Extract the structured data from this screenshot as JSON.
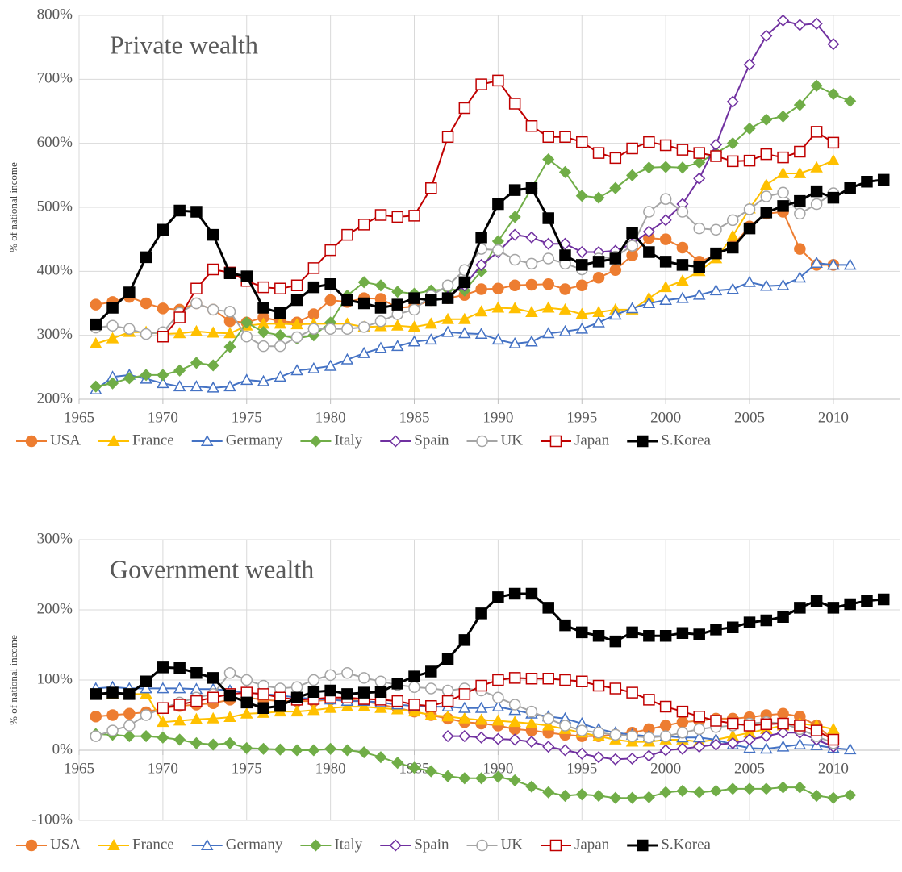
{
  "chart_data": [
    {
      "type": "line",
      "title": "Private wealth",
      "y_label": "% of national income",
      "x": [
        1966,
        1967,
        1968,
        1969,
        1970,
        1971,
        1972,
        1973,
        1974,
        1975,
        1976,
        1977,
        1978,
        1979,
        1980,
        1981,
        1982,
        1983,
        1984,
        1985,
        1986,
        1987,
        1988,
        1989,
        1990,
        1991,
        1992,
        1993,
        1994,
        1995,
        1996,
        1997,
        1998,
        1999,
        2000,
        2001,
        2002,
        2003,
        2004,
        2005,
        2006,
        2007,
        2008,
        2009,
        2010,
        2011,
        2012,
        2013
      ],
      "series": [
        {
          "name": "USA",
          "color": "#ED7D31",
          "marker": "circle",
          "filled": true,
          "values": [
            348,
            352,
            360,
            350,
            342,
            340,
            350,
            340,
            322,
            320,
            328,
            322,
            320,
            333,
            355,
            352,
            358,
            357,
            343,
            345,
            355,
            358,
            363,
            372,
            373,
            378,
            379,
            380,
            372,
            378,
            390,
            402,
            425,
            452,
            450,
            437,
            415,
            425,
            440,
            470,
            490,
            493,
            435,
            410,
            410,
            null,
            null,
            null
          ]
        },
        {
          "name": "France",
          "color": "#FFC000",
          "marker": "triangle",
          "filled": true,
          "values": [
            287,
            295,
            305,
            305,
            302,
            303,
            306,
            304,
            303,
            315,
            318,
            318,
            317,
            318,
            318,
            318,
            313,
            314,
            315,
            313,
            318,
            325,
            325,
            337,
            343,
            342,
            336,
            343,
            340,
            333,
            336,
            340,
            340,
            358,
            375,
            385,
            400,
            420,
            455,
            498,
            535,
            553,
            553,
            562,
            573,
            null,
            null,
            null
          ]
        },
        {
          "name": "Germany",
          "color": "#4472C4",
          "marker": "triangle",
          "filled": false,
          "values": [
            215,
            235,
            238,
            232,
            225,
            220,
            220,
            218,
            220,
            230,
            228,
            235,
            245,
            248,
            252,
            262,
            272,
            280,
            283,
            290,
            293,
            305,
            303,
            302,
            293,
            287,
            290,
            303,
            306,
            310,
            320,
            332,
            342,
            350,
            355,
            358,
            363,
            370,
            372,
            383,
            377,
            378,
            390,
            413,
            410,
            410,
            null,
            null
          ]
        },
        {
          "name": "Italy",
          "color": "#70AD47",
          "marker": "diamond",
          "filled": true,
          "values": [
            220,
            225,
            233,
            238,
            238,
            245,
            257,
            253,
            282,
            320,
            305,
            300,
            295,
            300,
            320,
            362,
            383,
            378,
            368,
            365,
            370,
            372,
            370,
            400,
            447,
            485,
            530,
            575,
            555,
            518,
            515,
            530,
            550,
            562,
            563,
            562,
            570,
            585,
            600,
            623,
            637,
            642,
            660,
            690,
            677,
            666,
            null,
            null
          ]
        },
        {
          "name": "Spain",
          "color": "#7030A0",
          "marker": "diamond",
          "filled": false,
          "values": [
            null,
            null,
            null,
            null,
            null,
            null,
            null,
            null,
            null,
            null,
            null,
            null,
            null,
            null,
            null,
            null,
            null,
            null,
            null,
            null,
            null,
            360,
            378,
            410,
            430,
            457,
            453,
            443,
            443,
            430,
            430,
            432,
            443,
            462,
            480,
            505,
            545,
            598,
            665,
            723,
            768,
            792,
            785,
            787,
            755,
            null,
            null,
            null
          ]
        },
        {
          "name": "UK",
          "color": "#A5A5A5",
          "marker": "circle",
          "filled": false,
          "values": [
            312,
            315,
            310,
            302,
            305,
            335,
            350,
            340,
            337,
            298,
            283,
            283,
            297,
            310,
            310,
            310,
            313,
            322,
            333,
            340,
            362,
            378,
            402,
            435,
            433,
            418,
            412,
            420,
            412,
            403,
            420,
            423,
            440,
            493,
            513,
            493,
            467,
            465,
            480,
            497,
            517,
            523,
            490,
            505,
            522,
            null,
            null,
            null
          ]
        },
        {
          "name": "Japan",
          "color": "#C00000",
          "marker": "square",
          "filled": false,
          "values": [
            null,
            null,
            null,
            null,
            298,
            328,
            373,
            403,
            398,
            385,
            375,
            373,
            378,
            405,
            433,
            457,
            473,
            488,
            485,
            487,
            530,
            610,
            655,
            692,
            698,
            662,
            627,
            610,
            610,
            602,
            585,
            577,
            592,
            602,
            597,
            590,
            585,
            580,
            572,
            573,
            583,
            578,
            587,
            618,
            601,
            null,
            null,
            null
          ]
        },
        {
          "name": "S.Korea",
          "color": "#000000",
          "marker": "square",
          "filled": true,
          "values": [
            317,
            343,
            367,
            422,
            465,
            495,
            493,
            457,
            397,
            392,
            343,
            335,
            355,
            375,
            380,
            355,
            350,
            343,
            348,
            358,
            355,
            358,
            383,
            453,
            505,
            527,
            530,
            483,
            425,
            410,
            415,
            420,
            460,
            430,
            415,
            410,
            407,
            428,
            437,
            467,
            492,
            502,
            510,
            525,
            515,
            530,
            540,
            543
          ]
        }
      ],
      "xlim": [
        1965,
        2014
      ],
      "ylim": [
        200,
        800
      ],
      "xticks": [
        1965,
        1970,
        1975,
        1980,
        1985,
        1990,
        1995,
        2000,
        2005,
        2010
      ],
      "yticks": [
        {
          "value": 200,
          "label": "200%"
        },
        {
          "value": 300,
          "label": "300%"
        },
        {
          "value": 400,
          "label": "400%"
        },
        {
          "value": 500,
          "label": "500%"
        },
        {
          "value": 600,
          "label": "600%"
        },
        {
          "value": 700,
          "label": "700%"
        },
        {
          "value": 800,
          "label": "800%"
        }
      ],
      "grid": true,
      "legend": "bottom"
    },
    {
      "type": "line",
      "title": "Government wealth",
      "y_label": "% of national income",
      "x": [
        1966,
        1967,
        1968,
        1969,
        1970,
        1971,
        1972,
        1973,
        1974,
        1975,
        1976,
        1977,
        1978,
        1979,
        1980,
        1981,
        1982,
        1983,
        1984,
        1985,
        1986,
        1987,
        1988,
        1989,
        1990,
        1991,
        1992,
        1993,
        1994,
        1995,
        1996,
        1997,
        1998,
        1999,
        2000,
        2001,
        2002,
        2003,
        2004,
        2005,
        2006,
        2007,
        2008,
        2009,
        2010,
        2011,
        2012,
        2013
      ],
      "series": [
        {
          "name": "USA",
          "color": "#ED7D31",
          "marker": "circle",
          "filled": true,
          "values": [
            48,
            50,
            52,
            54,
            60,
            63,
            65,
            67,
            72,
            75,
            72,
            70,
            70,
            70,
            72,
            72,
            70,
            65,
            60,
            55,
            50,
            45,
            40,
            38,
            35,
            30,
            28,
            25,
            22,
            20,
            20,
            22,
            25,
            30,
            35,
            40,
            42,
            45,
            45,
            47,
            50,
            52,
            48,
            35,
            15,
            null,
            null,
            null
          ]
        },
        {
          "name": "France",
          "color": "#FFC000",
          "marker": "triangle",
          "filled": true,
          "values": [
            80,
            80,
            80,
            80,
            40,
            42,
            44,
            45,
            47,
            52,
            53,
            55,
            55,
            57,
            60,
            62,
            62,
            60,
            58,
            55,
            50,
            48,
            45,
            43,
            42,
            40,
            38,
            35,
            30,
            25,
            20,
            15,
            12,
            12,
            15,
            15,
            12,
            15,
            20,
            25,
            30,
            35,
            38,
            35,
            30,
            null,
            null,
            null
          ]
        },
        {
          "name": "Germany",
          "color": "#4472C4",
          "marker": "triangle",
          "filled": false,
          "values": [
            88,
            90,
            88,
            88,
            88,
            88,
            87,
            87,
            85,
            82,
            80,
            78,
            75,
            73,
            72,
            70,
            70,
            68,
            65,
            63,
            62,
            62,
            60,
            60,
            62,
            57,
            52,
            48,
            45,
            38,
            30,
            25,
            22,
            20,
            20,
            18,
            18,
            15,
            8,
            3,
            2,
            5,
            8,
            7,
            3,
            1,
            null,
            null
          ]
        },
        {
          "name": "Italy",
          "color": "#70AD47",
          "marker": "diamond",
          "filled": true,
          "values": [
            23,
            22,
            20,
            20,
            18,
            15,
            10,
            8,
            10,
            3,
            2,
            1,
            0,
            0,
            2,
            0,
            -3,
            -10,
            -18,
            -25,
            -30,
            -37,
            -40,
            -40,
            -38,
            -43,
            -52,
            -60,
            -65,
            -63,
            -65,
            -68,
            -68,
            -67,
            -60,
            -58,
            -60,
            -58,
            -55,
            -55,
            -55,
            -53,
            -53,
            -65,
            -68,
            -64,
            null,
            null
          ]
        },
        {
          "name": "Spain",
          "color": "#7030A0",
          "marker": "diamond",
          "filled": false,
          "values": [
            null,
            null,
            null,
            null,
            null,
            null,
            null,
            null,
            null,
            null,
            null,
            null,
            null,
            null,
            null,
            null,
            null,
            null,
            null,
            null,
            null,
            20,
            20,
            18,
            16,
            15,
            12,
            5,
            0,
            -5,
            -10,
            -13,
            -12,
            -8,
            0,
            2,
            5,
            8,
            10,
            15,
            20,
            25,
            25,
            15,
            5,
            null,
            null,
            null
          ]
        },
        {
          "name": "UK",
          "color": "#A5A5A5",
          "marker": "circle",
          "filled": false,
          "values": [
            20,
            28,
            35,
            50,
            60,
            68,
            75,
            80,
            110,
            100,
            92,
            88,
            90,
            100,
            107,
            110,
            103,
            98,
            93,
            90,
            88,
            85,
            88,
            85,
            75,
            65,
            55,
            45,
            35,
            28,
            25,
            22,
            20,
            18,
            20,
            25,
            30,
            33,
            35,
            38,
            40,
            38,
            30,
            20,
            10,
            null,
            null,
            null
          ]
        },
        {
          "name": "Japan",
          "color": "#C00000",
          "marker": "square",
          "filled": false,
          "values": [
            null,
            null,
            null,
            null,
            60,
            65,
            70,
            75,
            80,
            82,
            80,
            75,
            72,
            73,
            75,
            75,
            73,
            72,
            70,
            65,
            63,
            70,
            80,
            92,
            100,
            103,
            102,
            102,
            100,
            98,
            92,
            88,
            82,
            72,
            62,
            55,
            48,
            42,
            38,
            35,
            37,
            38,
            35,
            28,
            15,
            null,
            null,
            null
          ]
        },
        {
          "name": "S.Korea",
          "color": "#000000",
          "marker": "square",
          "filled": true,
          "values": [
            80,
            82,
            80,
            98,
            118,
            117,
            110,
            103,
            78,
            68,
            60,
            63,
            75,
            83,
            85,
            80,
            82,
            83,
            95,
            105,
            112,
            130,
            157,
            195,
            218,
            223,
            223,
            203,
            178,
            168,
            163,
            155,
            168,
            163,
            163,
            167,
            165,
            172,
            175,
            182,
            185,
            190,
            203,
            213,
            203,
            208,
            213,
            215
          ]
        }
      ],
      "xlim": [
        1965,
        2014
      ],
      "ylim": [
        -100,
        300
      ],
      "xticks": [
        1965,
        1970,
        1975,
        1980,
        1985,
        1990,
        1995,
        2000,
        2005,
        2010
      ],
      "yticks": [
        {
          "value": -100,
          "label": "-100%"
        },
        {
          "value": 0,
          "label": "0%"
        },
        {
          "value": 100,
          "label": "100%"
        },
        {
          "value": 200,
          "label": "200%"
        },
        {
          "value": 300,
          "label": "300%"
        }
      ],
      "grid": true,
      "legend": "bottom"
    }
  ]
}
